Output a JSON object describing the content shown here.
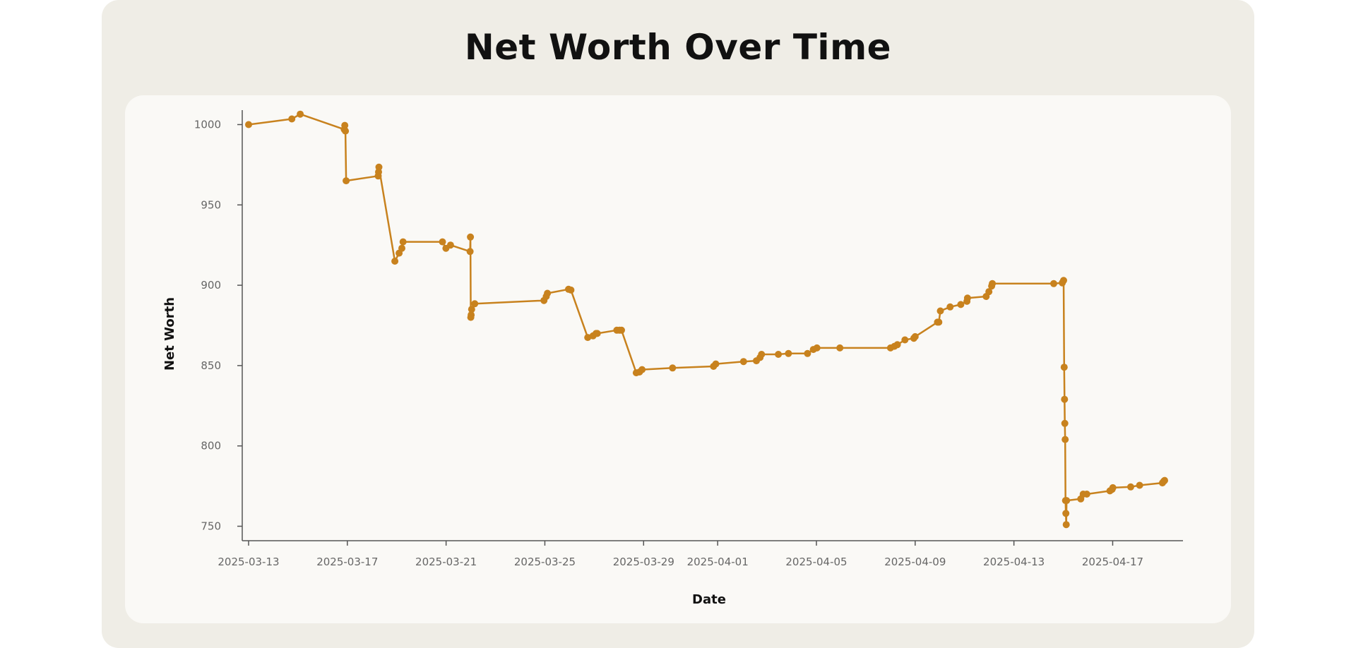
{
  "chart_data": {
    "type": "line",
    "title": "Net Worth Over Time",
    "xlabel": "Date",
    "ylabel": "Net Worth",
    "x_start": "2025-03-13",
    "xlim": [
      "2025-03-12T17:50",
      "2025-04-19T20:20"
    ],
    "ylim": [
      741,
      1009
    ],
    "x_ticks": [
      "2025-03-13",
      "2025-03-17",
      "2025-03-21",
      "2025-03-25",
      "2025-03-29",
      "2025-04-01",
      "2025-04-05",
      "2025-04-09",
      "2025-04-13",
      "2025-04-17"
    ],
    "y_ticks": [
      750,
      800,
      850,
      900,
      950,
      1000
    ],
    "line_color": "#c8821e",
    "grid": false,
    "legend": "none",
    "series": [
      {
        "name": "",
        "x": [
          "2025-03-13T00:00",
          "2025-03-14T18:00",
          "2025-03-15T02:10",
          "2025-03-16T21:00",
          "2025-03-16T21:30",
          "2025-03-16T22:10",
          "2025-03-16T22:50",
          "2025-03-18T06:00",
          "2025-03-18T06:20",
          "2025-03-18T06:40",
          "2025-03-18T22:10",
          "2025-03-19T02:20",
          "2025-03-19T05:00",
          "2025-03-19T06:10",
          "2025-03-20T20:30",
          "2025-03-20T23:50",
          "2025-03-21T04:20",
          "2025-03-21T23:20",
          "2025-03-21T23:40",
          "2025-03-22T00:00",
          "2025-03-22T00:20",
          "2025-03-22T00:50",
          "2025-03-22T03:50",
          "2025-03-24T23:10",
          "2025-03-25T01:20",
          "2025-03-25T02:30",
          "2025-03-25T23:00",
          "2025-03-26T01:20",
          "2025-03-26T17:40",
          "2025-03-26T22:50",
          "2025-03-27T01:50",
          "2025-03-27T03:00",
          "2025-03-27T22:00",
          "2025-03-28T00:40",
          "2025-03-28T02:30",
          "2025-03-28T16:50",
          "2025-03-28T20:00",
          "2025-03-28T22:30",
          "2025-03-30T04:10",
          "2025-03-31T20:00",
          "2025-03-31T22:10",
          "2025-04-02T01:10",
          "2025-04-02T13:40",
          "2025-04-02T17:10",
          "2025-04-02T18:40",
          "2025-04-03T11:00",
          "2025-04-03T20:50",
          "2025-04-04T15:20",
          "2025-04-04T21:00",
          "2025-04-05T00:30",
          "2025-04-05T22:50",
          "2025-04-08T00:00",
          "2025-04-08T03:50",
          "2025-04-08T06:40",
          "2025-04-08T14:00",
          "2025-04-08T22:40",
          "2025-04-09T00:00",
          "2025-04-09T21:40",
          "2025-04-09T23:00",
          "2025-04-10T00:30",
          "2025-04-10T10:00",
          "2025-04-10T20:20",
          "2025-04-11T02:20",
          "2025-04-11T02:50",
          "2025-04-11T21:00",
          "2025-04-11T23:40",
          "2025-04-12T02:20",
          "2025-04-12T03:00",
          "2025-04-14T14:40",
          "2025-04-14T23:00",
          "2025-04-15T00:20",
          "2025-04-15T00:50",
          "2025-04-15T01:10",
          "2025-04-15T01:30",
          "2025-04-15T01:50",
          "2025-04-15T02:10",
          "2025-04-15T02:30",
          "2025-04-15T02:50",
          "2025-04-15T03:10",
          "2025-04-15T17:00",
          "2025-04-15T19:20",
          "2025-04-15T22:50",
          "2025-04-16T21:20",
          "2025-04-16T23:30",
          "2025-04-17T00:10",
          "2025-04-17T17:30",
          "2025-04-18T02:10",
          "2025-04-19T00:20",
          "2025-04-19T01:40",
          "2025-04-19T02:30"
        ],
        "y": [
          1000,
          1003.5,
          1006.5,
          997,
          999.5,
          996,
          965,
          968,
          970.5,
          973.5,
          915,
          920,
          923,
          927,
          927,
          923,
          925,
          921,
          930,
          880,
          881.5,
          885,
          888.5,
          890.5,
          893,
          895,
          897.5,
          897,
          867.5,
          868.5,
          870,
          870,
          872,
          872,
          872,
          845.5,
          846,
          847.5,
          848.5,
          849.5,
          851,
          852.5,
          853,
          855,
          857,
          857,
          857.5,
          857.5,
          860,
          861,
          861,
          861,
          862,
          863,
          866,
          867,
          868,
          877,
          877,
          884,
          886.5,
          888,
          890,
          892,
          893,
          896,
          899.5,
          901,
          901,
          901.5,
          903,
          849,
          829,
          814,
          804,
          766,
          758,
          751,
          766,
          767,
          770,
          770,
          772,
          773,
          774,
          774.5,
          775.5,
          777,
          778,
          778.5
        ]
      }
    ]
  }
}
